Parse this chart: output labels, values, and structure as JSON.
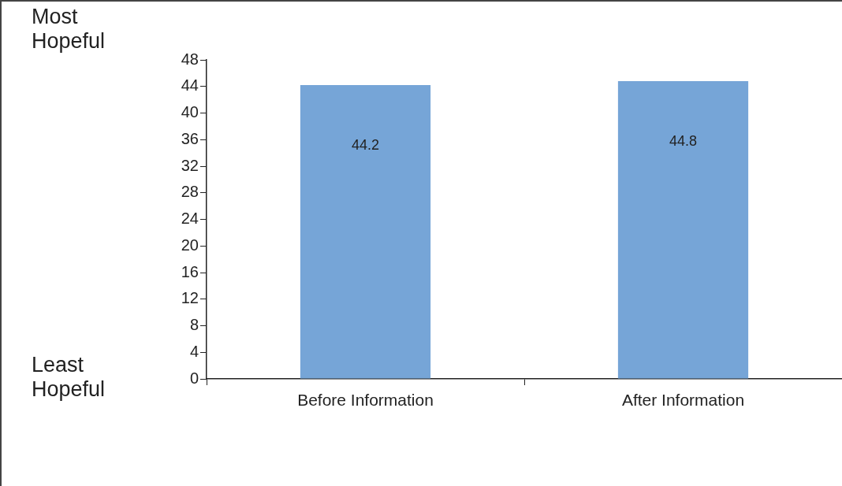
{
  "chart_data": {
    "type": "bar",
    "categories": [
      "Before Information",
      "After Information"
    ],
    "values": [
      44.2,
      44.8
    ],
    "color": "#76a5d7",
    "data_labels": true,
    "ylim": [
      0,
      48
    ],
    "yticks": [
      0,
      4,
      8,
      12,
      16,
      20,
      24,
      28,
      32,
      36,
      40,
      44,
      48
    ],
    "grid": false,
    "annotations": [
      "Most Hopeful",
      "Least Hopeful"
    ]
  }
}
